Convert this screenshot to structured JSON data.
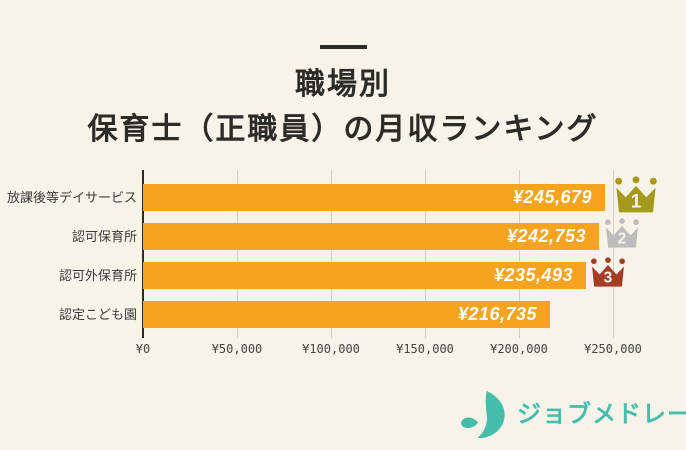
{
  "title": {
    "line1": "職場別",
    "line2": "保育士（正職員）の月収ランキング"
  },
  "chart_data": {
    "type": "bar",
    "orientation": "horizontal",
    "title": "職場別 保育士（正職員）の月収ランキング",
    "categories": [
      "放課後等デイサービス",
      "認可保育所",
      "認可外保育所",
      "認定こども園"
    ],
    "values": [
      245679,
      242753,
      235493,
      216735
    ],
    "value_labels": [
      "¥245,679",
      "¥242,753",
      "¥235,493",
      "¥216,735"
    ],
    "ranks": [
      "1",
      "2",
      "3"
    ],
    "xlim": [
      0,
      250000
    ],
    "x_ticks": [
      {
        "value": 0,
        "label": "¥0"
      },
      {
        "value": 50000,
        "label": "¥50,000"
      },
      {
        "value": 100000,
        "label": "¥100,000"
      },
      {
        "value": 150000,
        "label": "¥150,000"
      },
      {
        "value": 200000,
        "label": "¥200,000"
      },
      {
        "value": 250000,
        "label": "¥250,000"
      }
    ],
    "grid": true,
    "legend": "none",
    "xlabel": "",
    "ylabel": ""
  },
  "colors": {
    "background": "#F8F3E9",
    "bar": "#F6A41F",
    "rank_gold": "#A49B1C",
    "rank_silver": "#BDBDBD",
    "rank_bronze": "#A43D28",
    "axis": "#2B2B28",
    "gridline": "#D3CFC5",
    "title_text": "#2B2B28",
    "value_text": "#FFFFFF",
    "logo_teal": "#45BDAC"
  },
  "logo": {
    "text": "ジョブメドレー"
  }
}
